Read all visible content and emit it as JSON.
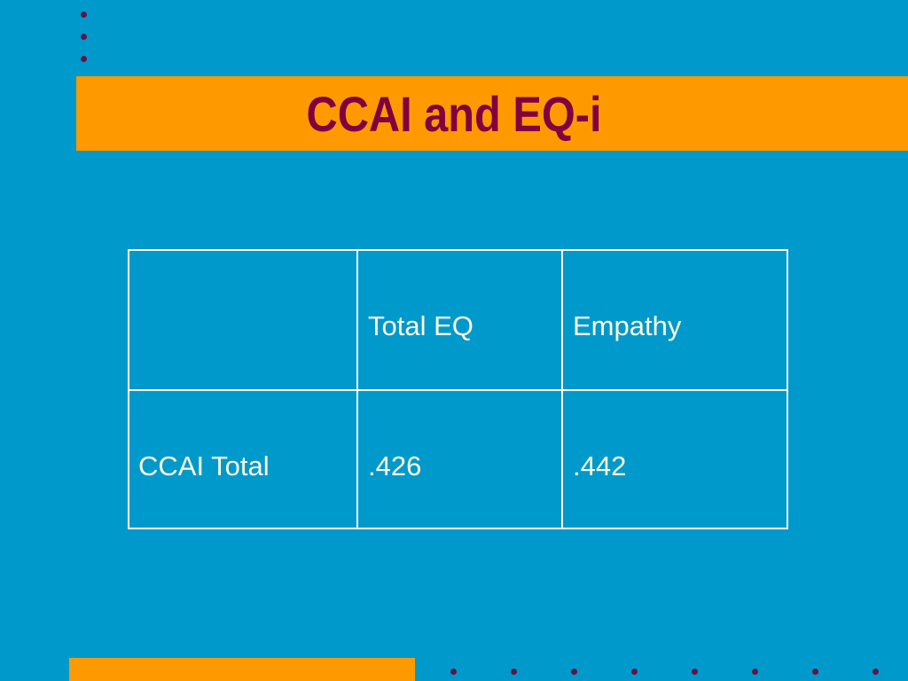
{
  "title": "CCAI and EQ-i",
  "table": {
    "columns": [
      "Total EQ",
      "Empathy"
    ],
    "rows": [
      {
        "label": "CCAI Total",
        "cells": [
          ".426",
          ".442"
        ]
      }
    ]
  }
}
